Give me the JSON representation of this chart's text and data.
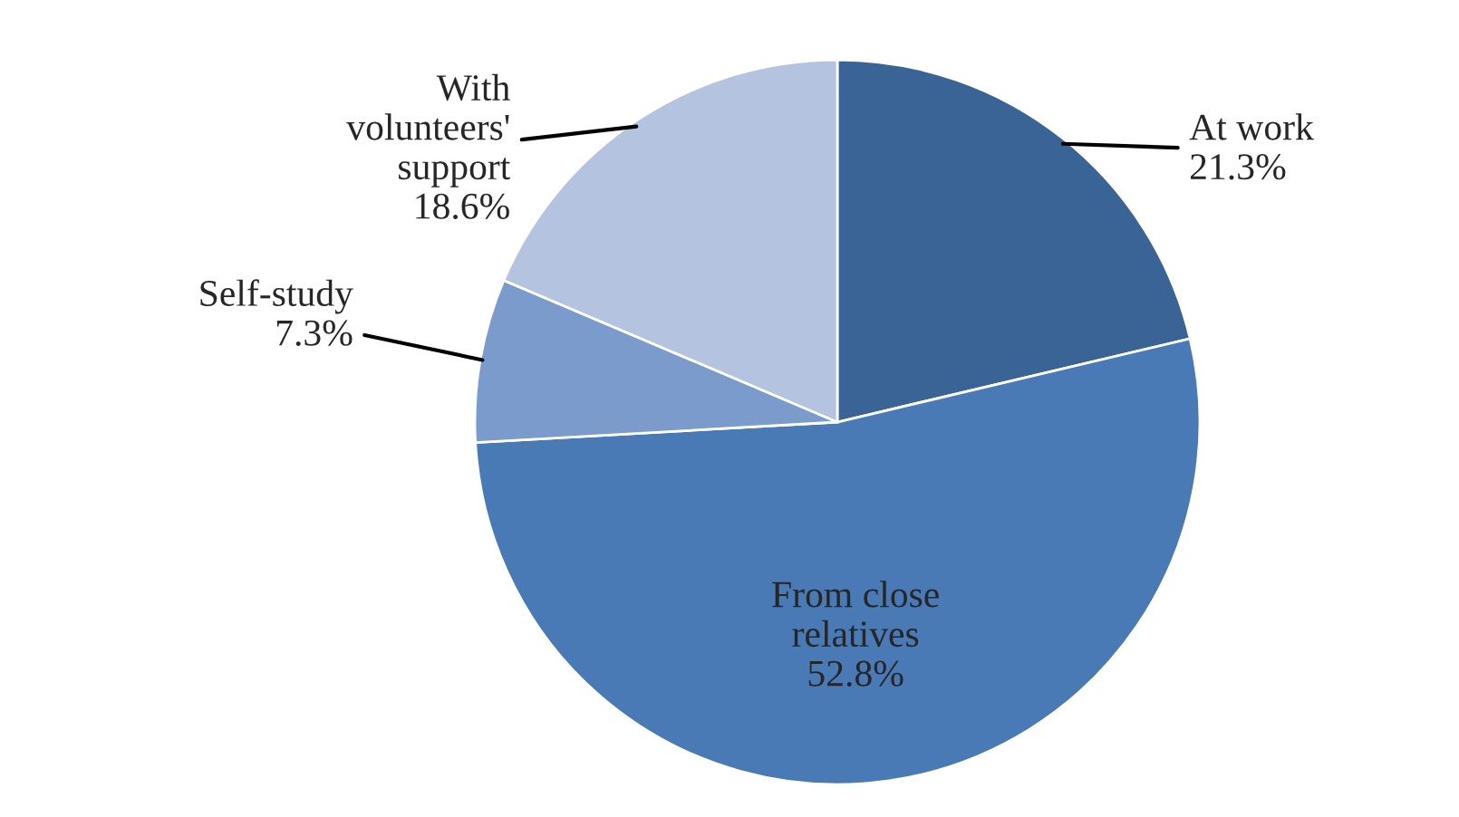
{
  "chart_data": {
    "type": "pie",
    "categories": [
      "At work",
      "From close\nrelatives",
      "Self-study",
      "With\nvolunteers'\nsupport"
    ],
    "values": [
      21.3,
      52.8,
      7.3,
      18.6
    ],
    "value_labels": [
      "21.3%",
      "52.8%",
      "7.3%",
      "18.6%"
    ],
    "colors": [
      "#3b6496",
      "#4a7ab5",
      "#7a9bcb",
      "#b4c3df"
    ]
  }
}
